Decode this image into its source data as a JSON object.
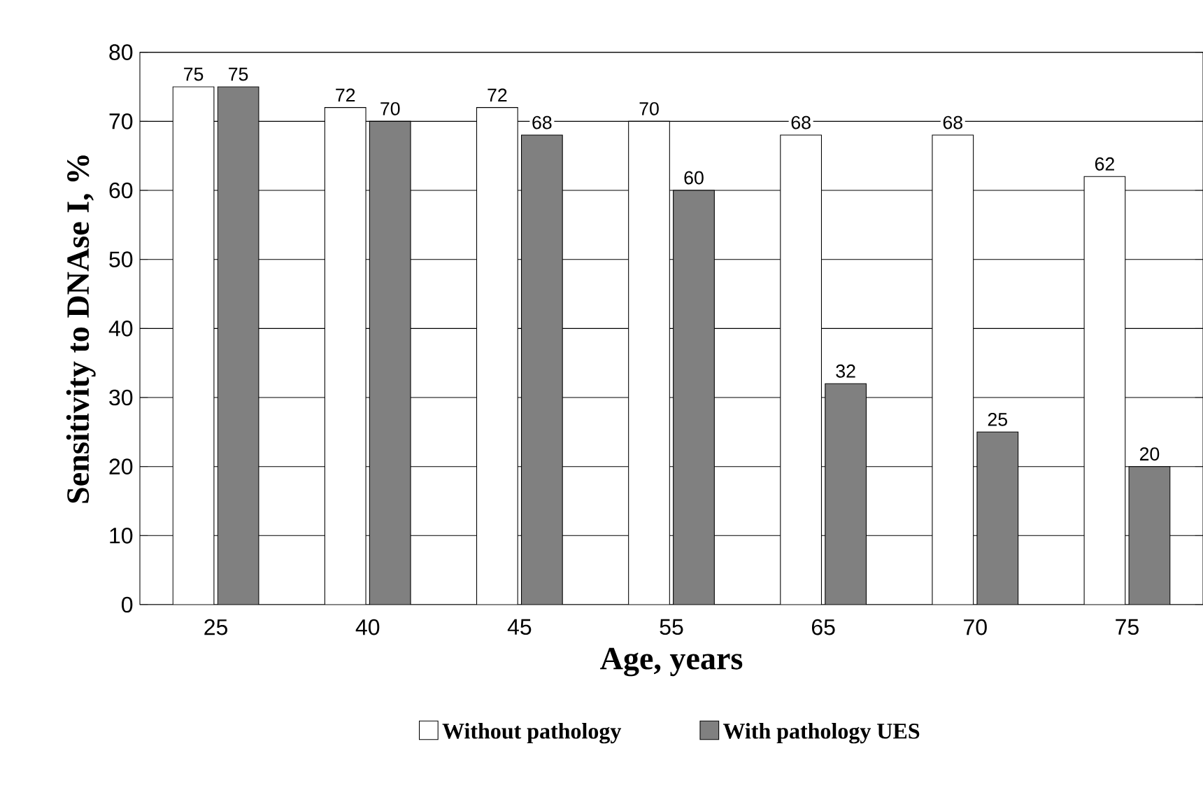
{
  "chart_data": {
    "type": "bar",
    "xlabel": "Age, years",
    "ylabel": "Sensitivity to DNAse I, %",
    "categories": [
      "25",
      "40",
      "45",
      "55",
      "65",
      "70",
      "75"
    ],
    "series": [
      {
        "name": "Without pathology",
        "color": "#ffffff",
        "values": [
          75,
          72,
          72,
          70,
          68,
          68,
          62
        ]
      },
      {
        "name": "With pathology UES",
        "color": "#808080",
        "values": [
          75,
          70,
          68,
          60,
          32,
          25,
          20
        ]
      }
    ],
    "ylim": [
      0,
      80
    ],
    "yticks": [
      0,
      10,
      20,
      30,
      40,
      50,
      60,
      70,
      80
    ],
    "grid": "y",
    "legend": "bottom",
    "data_labels": true
  }
}
